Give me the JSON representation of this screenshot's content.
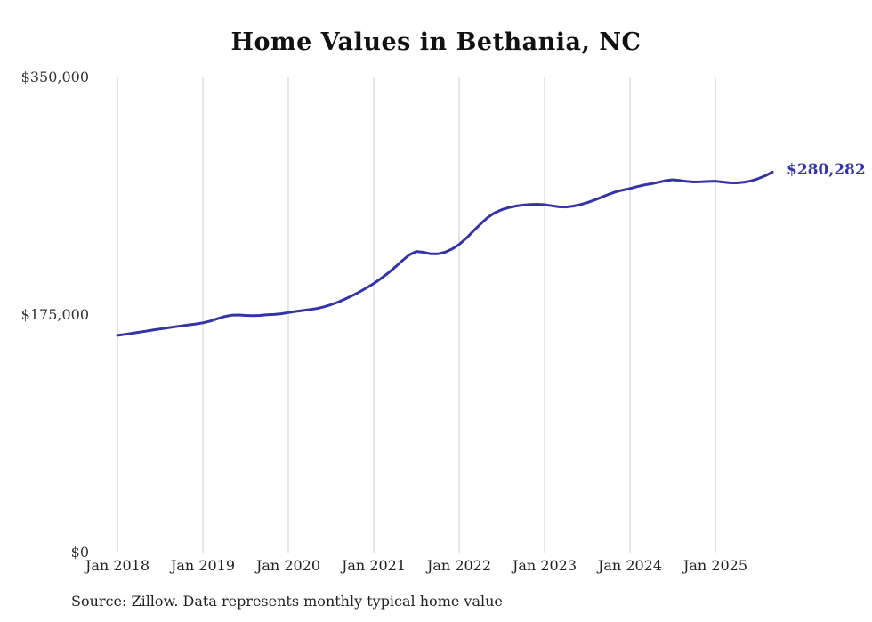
{
  "chart_data": {
    "type": "line",
    "title": "Home Values in Bethania, NC",
    "source_note": "Source: Zillow. Data represents monthly typical home value",
    "end_label": "$280,282",
    "latest_value": 280282,
    "line_color": "#3534a4",
    "grid_color": "#cccccc",
    "ylim": [
      0,
      350000
    ],
    "y_ticks": [
      {
        "value": 0,
        "label": "$0"
      },
      {
        "value": 175000,
        "label": "$175,000"
      },
      {
        "value": 350000,
        "label": "$350,000"
      }
    ],
    "x_ticks": [
      "Jan 2018",
      "Jan 2019",
      "Jan 2020",
      "Jan 2021",
      "Jan 2022",
      "Jan 2023",
      "Jan 2024",
      "Jan 2025"
    ],
    "start_month": "2018-01",
    "frequency": "monthly",
    "values": [
      160000,
      160700,
      161500,
      162300,
      163100,
      163900,
      164700,
      165500,
      166300,
      167000,
      167700,
      168400,
      169200,
      170500,
      172200,
      173800,
      174800,
      175000,
      174700,
      174500,
      174700,
      175100,
      175400,
      175900,
      176800,
      177600,
      178300,
      179000,
      179800,
      181000,
      182600,
      184500,
      186800,
      189300,
      192000,
      195000,
      198200,
      201800,
      205800,
      210200,
      215000,
      219300,
      221800,
      221200,
      220000,
      220000,
      221200,
      223600,
      227000,
      231500,
      236800,
      242000,
      246800,
      250300,
      252600,
      254200,
      255300,
      256000,
      256400,
      256600,
      256300,
      255500,
      254700,
      254600,
      255200,
      256300,
      257800,
      259700,
      261800,
      263900,
      265700,
      267000,
      268200,
      269600,
      270800,
      271700,
      272800,
      274000,
      274600,
      274100,
      273400,
      273000,
      273100,
      273400,
      273600,
      273000,
      272400,
      272300,
      272800,
      273800,
      275400,
      277600,
      280282
    ]
  }
}
